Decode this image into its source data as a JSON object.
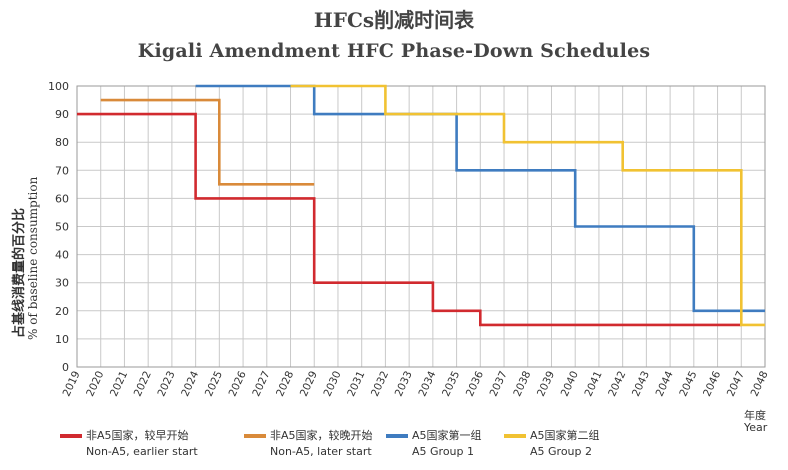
{
  "title_cn": "HFCs削减时间表",
  "title_en": "Kigali Amendment HFC Phase-Down Schedules",
  "chart_data": {
    "type": "line",
    "step": true,
    "title": "Kigali Amendment HFC Phase-Down Schedules",
    "ylabel_cn": "占基线消费量的百分比",
    "ylabel_en": "% of baseline consumption",
    "xlabel_cn": "年度",
    "xlabel_en": "Year",
    "xlim": [
      2019,
      2048
    ],
    "ylim": [
      0,
      100
    ],
    "x_ticks": [
      "2019",
      "2020",
      "2021",
      "2022",
      "2023",
      "2024",
      "2025",
      "2026",
      "2027",
      "2028",
      "2029",
      "2030",
      "2031",
      "2032",
      "2033",
      "2034",
      "2035",
      "2036",
      "2037",
      "2038",
      "2039",
      "2040",
      "2041",
      "2042",
      "2043",
      "2044",
      "2045",
      "2046",
      "2047",
      "2048"
    ],
    "y_ticks": [
      "0",
      "10",
      "20",
      "30",
      "40",
      "50",
      "60",
      "70",
      "80",
      "90",
      "100"
    ],
    "grid": true,
    "legend_position": "bottom",
    "series": [
      {
        "name_cn": "非A5国家，较早开始",
        "name_en": "Non-A5, earlier start",
        "color": "#d12a2f",
        "points": [
          [
            2019,
            90
          ],
          [
            2024,
            90
          ],
          [
            2024,
            60
          ],
          [
            2029,
            60
          ],
          [
            2029,
            30
          ],
          [
            2034,
            30
          ],
          [
            2034,
            20
          ],
          [
            2036,
            20
          ],
          [
            2036,
            15
          ],
          [
            2047,
            15
          ]
        ]
      },
      {
        "name_cn": "非A5国家，较晚开始",
        "name_en": "Non-A5, later start",
        "color": "#d98a3a",
        "points": [
          [
            2020,
            95
          ],
          [
            2025,
            95
          ],
          [
            2025,
            65
          ],
          [
            2029,
            65
          ]
        ]
      },
      {
        "name_cn": "A5国家第一组",
        "name_en": "A5 Group 1",
        "color": "#3f7cc0",
        "points": [
          [
            2024,
            100
          ],
          [
            2029,
            100
          ],
          [
            2029,
            90
          ],
          [
            2032,
            90
          ],
          [
            2032,
            90
          ],
          [
            2035,
            90
          ],
          [
            2035,
            70
          ],
          [
            2040,
            70
          ],
          [
            2040,
            50
          ],
          [
            2045,
            50
          ],
          [
            2045,
            20
          ],
          [
            2048,
            20
          ]
        ]
      },
      {
        "name_cn": "A5国家第二组",
        "name_en": "A5 Group 2",
        "color": "#f1c232",
        "points": [
          [
            2028,
            100
          ],
          [
            2032,
            100
          ],
          [
            2032,
            90
          ],
          [
            2037,
            90
          ],
          [
            2037,
            80
          ],
          [
            2042,
            80
          ],
          [
            2042,
            70
          ],
          [
            2047,
            70
          ],
          [
            2047,
            15
          ],
          [
            2048,
            15
          ]
        ]
      }
    ]
  }
}
